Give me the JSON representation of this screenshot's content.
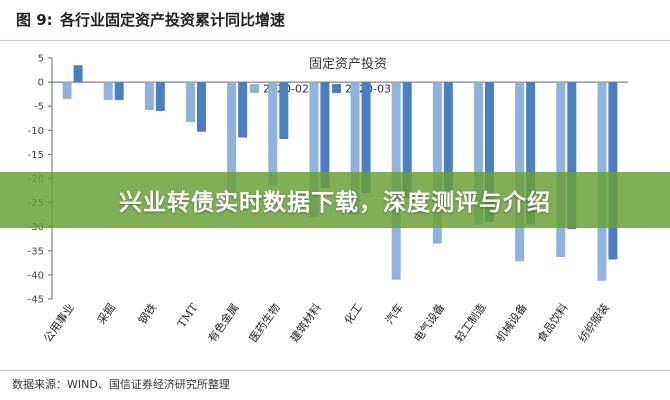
{
  "header": {
    "figure_label": "图 9:",
    "figure_title": "各行业固定资产投资累计同比增速"
  },
  "banner": {
    "text": "兴业转债实时数据下载，深度测评与介绍"
  },
  "footer": {
    "source": "数据来源：WIND、国信证券经济研究所整理"
  },
  "chart_data": {
    "type": "bar",
    "title": "固定资产投资",
    "xlabel": "",
    "ylabel": "",
    "ylim": [
      -45,
      5
    ],
    "yticks": [
      5,
      0,
      -5,
      -10,
      -15,
      -20,
      -25,
      -30,
      -35,
      -40,
      -45
    ],
    "grid": false,
    "legend_position": "top-center",
    "categories": [
      "公用事业",
      "采掘",
      "钢铁",
      "TMT",
      "有色金属",
      "医药生物",
      "建筑材料",
      "化工",
      "汽车",
      "电气设备",
      "轻工制造",
      "机械设备",
      "食品饮料",
      "纺织服装"
    ],
    "series": [
      {
        "name": "2020-02",
        "color": "#8fb3dc",
        "values": [
          -3.5,
          -3.7,
          -5.8,
          -8.3,
          -23.5,
          -21.5,
          -28.0,
          -27.5,
          -41.0,
          -33.5,
          -29.5,
          -37.2,
          -36.3,
          -41.2
        ]
      },
      {
        "name": "2020-03",
        "color": "#4a7fc1",
        "values": [
          3.5,
          -3.7,
          -6.0,
          -10.3,
          -11.5,
          -11.8,
          -22.0,
          -23.0,
          -24.0,
          -26.0,
          -29.0,
          -29.5,
          -30.5,
          -36.8
        ]
      }
    ]
  }
}
